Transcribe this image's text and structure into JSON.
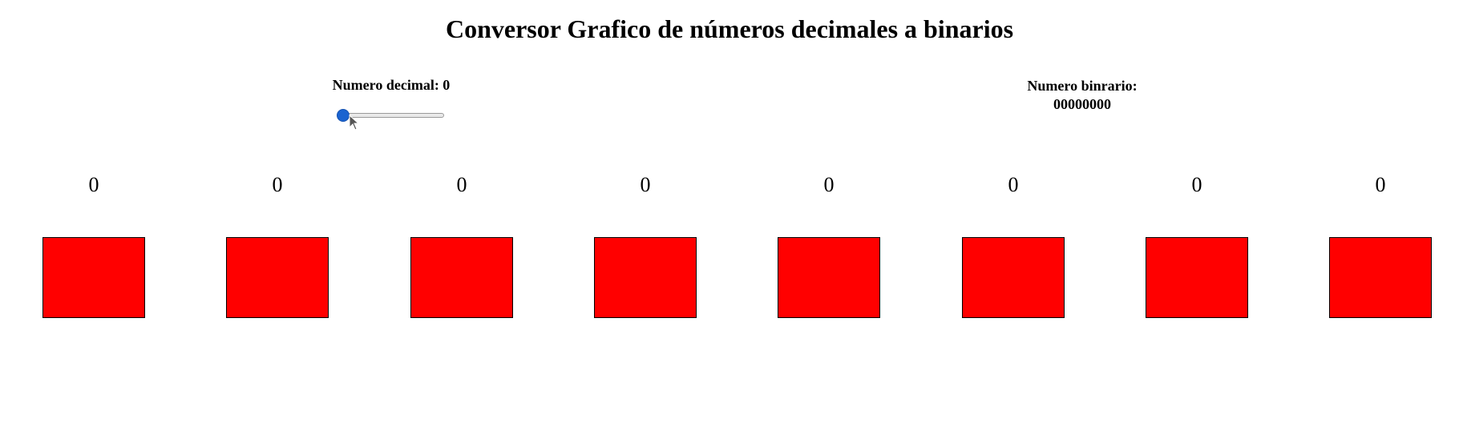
{
  "page": {
    "title": "Conversor Grafico de números decimales a binarios"
  },
  "decimal": {
    "label": "Numero decimal: 0",
    "slider_value": 0,
    "slider_min": 0,
    "slider_max": 255,
    "slider_color": "#1a63d0"
  },
  "binary": {
    "label": "Numero binrario:",
    "value": "00000000"
  },
  "bits": [
    {
      "value": "0",
      "color": "#ff0000"
    },
    {
      "value": "0",
      "color": "#ff0000"
    },
    {
      "value": "0",
      "color": "#ff0000"
    },
    {
      "value": "0",
      "color": "#ff0000"
    },
    {
      "value": "0",
      "color": "#ff0000"
    },
    {
      "value": "0",
      "color": "#ff0000"
    },
    {
      "value": "0",
      "color": "#ff0000"
    },
    {
      "value": "0",
      "color": "#ff0000"
    }
  ]
}
